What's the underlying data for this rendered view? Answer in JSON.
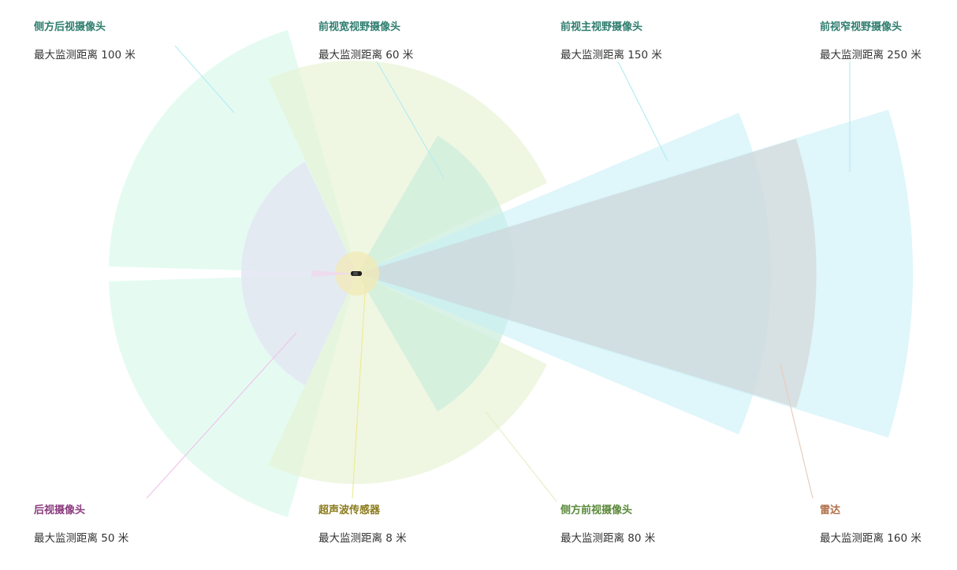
{
  "sensors": [
    {
      "key": "side_rear",
      "name": "侧方后视摄像头",
      "range_text": "最大监测距离 100 米",
      "name_color": "#2e7d6e",
      "fill": "#d4f8ea",
      "leader": "#b6ecf2"
    },
    {
      "key": "front_wide",
      "name": "前视宽视野摄像头",
      "range_text": "最大监测距离 60 米",
      "name_color": "#2e7d6e",
      "fill": "#e6f3d2",
      "leader": "#b6ecf2"
    },
    {
      "key": "front_main",
      "name": "前视主视野摄像头",
      "range_text": "最大监测距离 150 米",
      "name_color": "#2e7d6e",
      "fill": "#c4eef8",
      "leader": "#b6ecf2"
    },
    {
      "key": "front_narrow",
      "name": "前视窄视野摄像头",
      "range_text": "最大监测距离 250 米",
      "name_color": "#2e7d6e",
      "fill": "#c4eef8",
      "leader": "#b6ecf2"
    },
    {
      "key": "rear",
      "name": "后视摄像头",
      "range_text": "最大监测距离 50 米",
      "name_color": "#8a3a7e",
      "fill": "#e3e6f2",
      "leader": "#f0c4ea"
    },
    {
      "key": "ultrasonic",
      "name": "超声波传感器",
      "range_text": "最大监测距离 8 米",
      "name_color": "#8a7a1a",
      "fill": "#f3e9b6",
      "leader": "#eeea9a"
    },
    {
      "key": "side_front",
      "name": "侧方前视摄像头",
      "range_text": "最大监测距离 80 米",
      "name_color": "#5b8a3a",
      "fill": "#cdeedc",
      "leader": "#e4f0c8"
    },
    {
      "key": "radar",
      "name": "雷达",
      "range_text": "最大监测距离 160 米",
      "name_color": "#b0704a",
      "fill": "#dadada",
      "leader": "#e8cdbf"
    }
  ]
}
